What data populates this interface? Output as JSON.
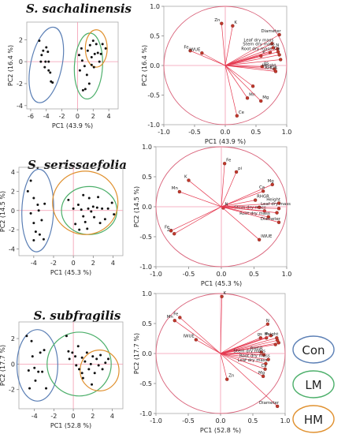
{
  "chart_data": [
    {
      "panel": "scores",
      "type": "scatter",
      "title": "S. sachalinensis",
      "xlabel": "PC1 (43.9 %)",
      "ylabel": "PC2 (16.4 %)",
      "xlim": [
        -6.5,
        5.2
      ],
      "ylim": [
        -4.3,
        3.6
      ],
      "xticks": [
        "-6",
        "-4",
        "-2",
        "0",
        "2",
        "4"
      ],
      "yticks": [
        "-4",
        "-2",
        "0",
        "2"
      ],
      "points": [
        [
          -4.9,
          1.9
        ],
        [
          -4.6,
          0.6
        ],
        [
          -4.7,
          0.0
        ],
        [
          -4.4,
          1.0
        ],
        [
          -4.1,
          0.0
        ],
        [
          -4.0,
          1.3
        ],
        [
          -3.8,
          0.9
        ],
        [
          -3.7,
          0.0
        ],
        [
          -3.7,
          -0.8
        ],
        [
          -3.5,
          -1.0
        ],
        [
          -3.4,
          -1.8
        ],
        [
          -3.2,
          -1.9
        ],
        [
          -4.2,
          -0.5
        ],
        [
          0.2,
          0.6
        ],
        [
          0.3,
          -0.8
        ],
        [
          0.5,
          1.2
        ],
        [
          0.6,
          0.1
        ],
        [
          0.9,
          -0.4
        ],
        [
          1.2,
          -1.2
        ],
        [
          1.5,
          -2.0
        ],
        [
          1.0,
          -2.5
        ],
        [
          0.7,
          -2.6
        ],
        [
          1.3,
          1.0
        ],
        [
          1.8,
          0.4
        ],
        [
          1.6,
          1.5
        ],
        [
          2.2,
          0.7
        ],
        [
          2.0,
          1.9
        ],
        [
          1.8,
          -0.3
        ],
        [
          2.4,
          1.6
        ],
        [
          2.6,
          0.8
        ],
        [
          2.1,
          -0.5
        ],
        [
          3.0,
          0.7
        ],
        [
          3.2,
          1.6
        ],
        [
          3.6,
          1.2
        ],
        [
          2.8,
          0.0
        ]
      ],
      "ellipses": [
        {
          "group": "Con",
          "cx": -4.0,
          "cy": -0.3,
          "rx": 2.0,
          "ry": 3.5,
          "rot": 12
        },
        {
          "group": "LM",
          "cx": 1.4,
          "cy": -0.4,
          "rx": 1.8,
          "ry": 3.0,
          "rot": 3
        },
        {
          "group": "HM",
          "cx": 2.4,
          "cy": 1.2,
          "rx": 1.4,
          "ry": 1.7,
          "rot": 0
        }
      ]
    },
    {
      "panel": "loadings",
      "type": "scatter",
      "xlabel": "PC1 (43.9 %)",
      "ylabel": "PC2 (16.4 %)",
      "xlim": [
        -1.0,
        1.0
      ],
      "ylim": [
        -1.0,
        1.0
      ],
      "xticks": [
        "-1.0",
        "-0.5",
        "0.0",
        "0.5",
        "1.0"
      ],
      "yticks": [
        "-1.0",
        "-0.5",
        "0.0",
        "0.5",
        "1.0"
      ],
      "vectors": [
        {
          "label": "Zn",
          "x": -0.06,
          "y": 0.71
        },
        {
          "label": "K",
          "x": 0.12,
          "y": 0.67
        },
        {
          "label": "Fe",
          "x": -0.57,
          "y": 0.25
        },
        {
          "label": "IWUE",
          "x": -0.38,
          "y": 0.21
        },
        {
          "label": "Diameter",
          "x": 0.88,
          "y": 0.52
        },
        {
          "label": "Leaf dry mass",
          "x": 0.76,
          "y": 0.37
        },
        {
          "label": "Stem dry mass",
          "x": 0.78,
          "y": 0.3
        },
        {
          "label": "Root dry mass",
          "x": 0.73,
          "y": 0.22
        },
        {
          "label": "P",
          "x": 0.58,
          "y": 0.16
        },
        {
          "label": "N",
          "x": 0.85,
          "y": 0.28
        },
        {
          "label": "Ca",
          "x": 0.86,
          "y": 0.23
        },
        {
          "label": "",
          "x": 0.88,
          "y": 0.18
        },
        {
          "label": "",
          "x": 0.9,
          "y": 0.1
        },
        {
          "label": "gs",
          "x": 0.6,
          "y": -0.02
        },
        {
          "label": "Height",
          "x": 0.8,
          "y": -0.06
        },
        {
          "label": "RHGR",
          "x": 0.82,
          "y": -0.1
        },
        {
          "label": "Mn",
          "x": 0.36,
          "y": -0.55
        },
        {
          "label": "Mg",
          "x": 0.58,
          "y": -0.6
        },
        {
          "label": "Ce",
          "x": 0.19,
          "y": -0.85
        },
        {
          "label": "",
          "x": 0.45,
          "y": -0.35
        }
      ]
    },
    {
      "panel": "scores",
      "type": "scatter",
      "title": "S. serissaefolia",
      "xlabel": "PC1 (45.3 %)",
      "ylabel": "PC2 (14.5 %)",
      "xlim": [
        -5.5,
        5.0
      ],
      "ylim": [
        -4.7,
        4.5
      ],
      "xticks": [
        "-4",
        "-2",
        "0",
        "2",
        "4"
      ],
      "yticks": [
        "-4",
        "-2",
        "0",
        "2",
        "4"
      ],
      "points": [
        [
          -4.6,
          2.0
        ],
        [
          -4.3,
          3.1
        ],
        [
          -4.3,
          -0.3
        ],
        [
          -4.0,
          1.3
        ],
        [
          -4.0,
          -1.3
        ],
        [
          -4.0,
          -3.1
        ],
        [
          -3.8,
          -2.2
        ],
        [
          -3.6,
          0.6
        ],
        [
          -3.5,
          0.0
        ],
        [
          -3.4,
          -2.5
        ],
        [
          -3.2,
          -1.0
        ],
        [
          -3.0,
          -3.0
        ],
        [
          -2.9,
          0.7
        ],
        [
          -0.5,
          1.1
        ],
        [
          0.0,
          0.2
        ],
        [
          0.2,
          -1.4
        ],
        [
          0.5,
          0.6
        ],
        [
          0.8,
          0.1
        ],
        [
          1.0,
          -0.6
        ],
        [
          1.0,
          1.6
        ],
        [
          1.2,
          -1.2
        ],
        [
          1.5,
          0.2
        ],
        [
          1.6,
          1.3
        ],
        [
          1.8,
          -0.1
        ],
        [
          2.0,
          0.4
        ],
        [
          2.1,
          -0.7
        ],
        [
          2.4,
          0.3
        ],
        [
          2.5,
          1.4
        ],
        [
          2.7,
          -1.3
        ],
        [
          2.9,
          0.2
        ],
        [
          3.2,
          -0.9
        ],
        [
          3.5,
          0.2
        ],
        [
          3.9,
          0.8
        ],
        [
          4.1,
          -0.4
        ],
        [
          0.6,
          -2.0
        ],
        [
          1.4,
          -1.9
        ]
      ],
      "ellipses": [
        {
          "group": "Con",
          "cx": -3.6,
          "cy": 0.0,
          "rx": 1.6,
          "ry": 4.3,
          "rot": 2
        },
        {
          "group": "LM",
          "cx": 1.6,
          "cy": 0.0,
          "rx": 2.8,
          "ry": 2.5,
          "rot": 0
        },
        {
          "group": "HM",
          "cx": 1.2,
          "cy": 0.8,
          "rx": 3.3,
          "ry": 3.3,
          "rot": 0
        }
      ]
    },
    {
      "panel": "loadings",
      "type": "scatter",
      "xlabel": "PC1 (45.3 %)",
      "ylabel": "PC2 (14.5 %)",
      "xlim": [
        -1.0,
        1.0
      ],
      "ylim": [
        -1.0,
        1.0
      ],
      "xticks": [
        "-1.0",
        "-0.5",
        "0.0",
        "0.5",
        "1.0"
      ],
      "yticks": [
        "-1.0",
        "-0.5",
        "0.0",
        "0.5",
        "1.0"
      ],
      "vectors": [
        {
          "label": "Fe",
          "x": 0.05,
          "y": 0.72
        },
        {
          "label": "pi",
          "x": 0.23,
          "y": 0.58
        },
        {
          "label": "K",
          "x": -0.5,
          "y": 0.44
        },
        {
          "label": "Mn",
          "x": -0.64,
          "y": 0.25
        },
        {
          "label": "Mg",
          "x": 0.78,
          "y": 0.37
        },
        {
          "label": "Ca",
          "x": 0.64,
          "y": 0.26
        },
        {
          "label": "Zn",
          "x": -0.72,
          "y": -0.45
        },
        {
          "label": "Fe",
          "x": -0.77,
          "y": -0.4
        },
        {
          "label": "N",
          "x": 0.03,
          "y": -0.02
        },
        {
          "label": "RHGR",
          "x": 0.52,
          "y": 0.11
        },
        {
          "label": "Height",
          "x": 0.88,
          "y": 0.06
        },
        {
          "label": "Leaf dry mass",
          "x": 0.58,
          "y": -0.01
        },
        {
          "label": "Stem dry mass",
          "x": 0.66,
          "y": -0.07
        },
        {
          "label": "Root dry mass",
          "x": 0.72,
          "y": -0.17
        },
        {
          "label": "IWUE",
          "x": 0.58,
          "y": -0.55
        },
        {
          "label": "Diameter",
          "x": 0.88,
          "y": -0.26
        },
        {
          "label": "",
          "x": 0.85,
          "y": -0.1
        },
        {
          "label": "",
          "x": 0.88,
          "y": -0.03
        }
      ]
    },
    {
      "panel": "scores",
      "type": "scatter",
      "title": "S. subfragilis",
      "xlabel": "PC1 (52.8 %)",
      "ylabel": "PC2 (17.7 %)",
      "xlim": [
        -5.6,
        5.1
      ],
      "ylim": [
        -3.5,
        3.3
      ],
      "xticks": [
        "-4",
        "-2",
        "0",
        "2",
        "4"
      ],
      "yticks": [
        "-2",
        "0",
        "2"
      ],
      "points": [
        [
          -4.8,
          2.2
        ],
        [
          -4.6,
          -0.5
        ],
        [
          -4.5,
          -1.9
        ],
        [
          -4.3,
          1.8
        ],
        [
          -4.2,
          0.6
        ],
        [
          -4.0,
          -0.3
        ],
        [
          -3.9,
          -1.3
        ],
        [
          -3.6,
          -0.6
        ],
        [
          -3.4,
          0.9
        ],
        [
          -3.2,
          -0.6
        ],
        [
          -3.0,
          1.1
        ],
        [
          -2.8,
          -1.9
        ],
        [
          -0.7,
          2.2
        ],
        [
          -0.5,
          1.0
        ],
        [
          -0.4,
          0.4
        ],
        [
          -0.1,
          0.9
        ],
        [
          0.2,
          0.6
        ],
        [
          0.3,
          -0.1
        ],
        [
          0.5,
          1.4
        ],
        [
          0.6,
          -0.4
        ],
        [
          0.9,
          0.5
        ],
        [
          1.0,
          -1.1
        ],
        [
          1.2,
          0.2
        ],
        [
          1.4,
          0.9
        ],
        [
          1.6,
          -0.4
        ],
        [
          1.8,
          0.0
        ],
        [
          2.0,
          0.6
        ],
        [
          2.2,
          -0.7
        ],
        [
          2.4,
          0.4
        ],
        [
          2.6,
          -0.1
        ],
        [
          2.8,
          0.7
        ],
        [
          3.0,
          -0.4
        ],
        [
          3.3,
          0.1
        ],
        [
          3.6,
          0.4
        ],
        [
          1.9,
          -1.6
        ],
        [
          0.9,
          -0.7
        ]
      ],
      "ellipses": [
        {
          "group": "Con",
          "cx": -3.7,
          "cy": -0.1,
          "rx": 2.1,
          "ry": 2.8,
          "rot": 0
        },
        {
          "group": "LM",
          "cx": 0.6,
          "cy": 0.0,
          "rx": 3.3,
          "ry": 2.5,
          "rot": 0
        },
        {
          "group": "HM",
          "cx": 2.7,
          "cy": -0.5,
          "rx": 2.0,
          "ry": 1.6,
          "rot": 0
        }
      ]
    },
    {
      "panel": "loadings",
      "type": "scatter",
      "xlabel": "PC1 (52.8 %)",
      "ylabel": "PC2 (17.7 %)",
      "xlim": [
        -1.0,
        1.0
      ],
      "ylim": [
        -1.0,
        1.0
      ],
      "xticks": [
        "-1.0",
        "-0.5",
        "0.0",
        "0.5",
        "1.0"
      ],
      "yticks": [
        "-1.0",
        "-0.5",
        "0.0",
        "0.5",
        "1.0"
      ],
      "vectors": [
        {
          "label": "K",
          "x": 0.02,
          "y": 0.95
        },
        {
          "label": "Fe",
          "x": -0.63,
          "y": 0.6
        },
        {
          "label": "Mn",
          "x": -0.71,
          "y": 0.55
        },
        {
          "label": "IWUE",
          "x": -0.38,
          "y": 0.23
        },
        {
          "label": "N",
          "x": 0.73,
          "y": 0.49
        },
        {
          "label": "gs",
          "x": 0.62,
          "y": 0.26
        },
        {
          "label": "P",
          "x": 0.71,
          "y": 0.26
        },
        {
          "label": "",
          "x": 0.78,
          "y": 0.3
        },
        {
          "label": "Height",
          "x": 0.87,
          "y": 0.26
        },
        {
          "label": "",
          "x": 0.88,
          "y": 0.22
        },
        {
          "label": "",
          "x": 0.9,
          "y": 0.18
        },
        {
          "label": "",
          "x": 0.85,
          "y": 0.15
        },
        {
          "label": "RHGR",
          "x": 0.63,
          "y": 0.02
        },
        {
          "label": "Stem dry mass",
          "x": 0.67,
          "y": -0.02
        },
        {
          "label": "Root dry mass",
          "x": 0.74,
          "y": -0.1
        },
        {
          "label": "Leaf dry mass",
          "x": 0.7,
          "y": -0.17
        },
        {
          "label": "Ca",
          "x": 0.69,
          "y": -0.26
        },
        {
          "label": "Mg",
          "x": 0.66,
          "y": -0.38
        },
        {
          "label": "Zn",
          "x": 0.1,
          "y": -0.43
        },
        {
          "label": "Diameter",
          "x": 0.88,
          "y": -0.88
        }
      ]
    }
  ],
  "legend": [
    {
      "label": "Con",
      "color": "#5b7fb5"
    },
    {
      "label": "LM",
      "color": "#4caf6a"
    },
    {
      "label": "HM",
      "color": "#e0902e"
    }
  ],
  "colors": {
    "vector": "#e53950",
    "circle": "#d9627a",
    "crosshair": "#f39ab0",
    "point": "#111111",
    "axis": "#888888"
  }
}
